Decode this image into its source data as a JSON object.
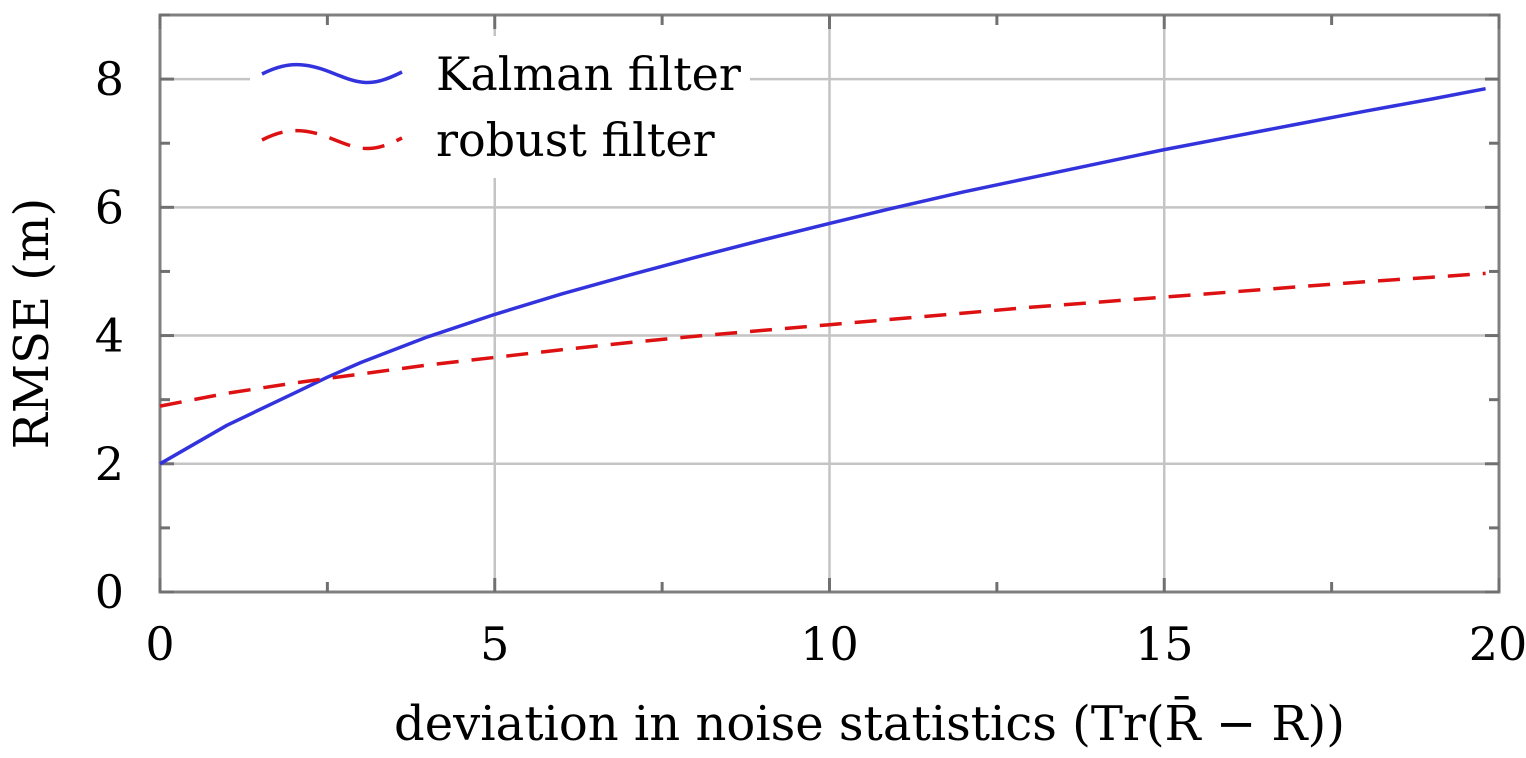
{
  "chart_data": {
    "type": "line",
    "xlabel": "deviation in noise statistics (Tr(R̄ − R))",
    "ylabel": "RMSE (m)",
    "xlim": [
      0,
      20
    ],
    "ylim": [
      0,
      9
    ],
    "xticks": [
      0,
      5,
      10,
      15,
      20
    ],
    "yticks": [
      0,
      2,
      4,
      6,
      8
    ],
    "xtick_labels": [
      "0",
      "5",
      "10",
      "15",
      "20"
    ],
    "ytick_labels": [
      "0",
      "2",
      "4",
      "6",
      "8"
    ],
    "grid": true,
    "legend_position": "top-left",
    "series": [
      {
        "name": "Kalman filter",
        "color": "#3333dd",
        "style": "solid",
        "x": [
          0,
          1,
          2,
          2.5,
          3,
          4,
          5,
          6,
          7,
          8,
          9,
          10,
          11,
          12,
          13,
          14,
          15,
          16,
          17,
          18,
          19,
          19.8
        ],
        "y": [
          2.0,
          2.6,
          3.1,
          3.35,
          3.58,
          3.98,
          4.33,
          4.65,
          4.94,
          5.22,
          5.49,
          5.75,
          6.0,
          6.24,
          6.46,
          6.68,
          6.9,
          7.1,
          7.3,
          7.5,
          7.69,
          7.85
        ]
      },
      {
        "name": "robust filter",
        "color": "#dd1111",
        "style": "dashed",
        "x": [
          0,
          1,
          2,
          3,
          4,
          5,
          6,
          7,
          8,
          9,
          10,
          11,
          12,
          13,
          14,
          15,
          16,
          17,
          18,
          19,
          19.8
        ],
        "y": [
          2.9,
          3.1,
          3.26,
          3.4,
          3.54,
          3.66,
          3.78,
          3.89,
          3.99,
          4.08,
          4.17,
          4.26,
          4.35,
          4.44,
          4.52,
          4.6,
          4.68,
          4.76,
          4.84,
          4.91,
          4.97
        ]
      }
    ]
  }
}
